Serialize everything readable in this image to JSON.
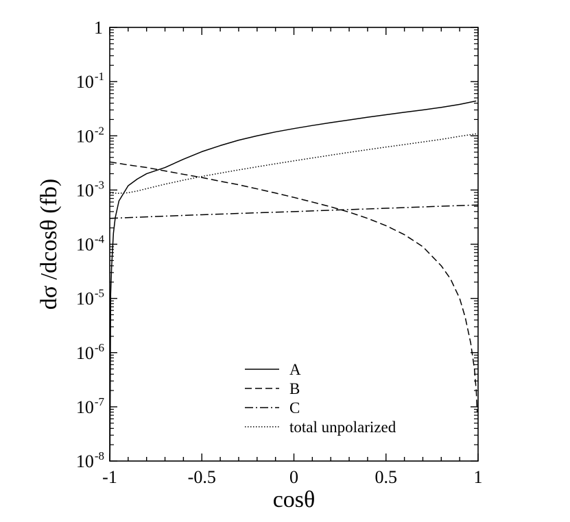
{
  "chart_data": {
    "type": "line",
    "xlabel": "cosθ",
    "ylabel": "dσ /dcosθ (fb)",
    "xlim": [
      -1,
      1
    ],
    "ylim": [
      1e-08,
      1
    ],
    "yscale": "log",
    "grid": false,
    "legend_position": "bottom-center",
    "x_ticks": [
      {
        "value": -1,
        "label": "-1"
      },
      {
        "value": -0.5,
        "label": "-0.5"
      },
      {
        "value": 0,
        "label": "0"
      },
      {
        "value": 0.5,
        "label": "0.5"
      },
      {
        "value": 1,
        "label": "1"
      }
    ],
    "y_ticks": [
      {
        "value": 1,
        "base": "1",
        "exp": ""
      },
      {
        "value": 0.1,
        "base": "10",
        "exp": "-1"
      },
      {
        "value": 0.01,
        "base": "10",
        "exp": "-2"
      },
      {
        "value": 0.001,
        "base": "10",
        "exp": "-3"
      },
      {
        "value": 0.0001,
        "base": "10",
        "exp": "-4"
      },
      {
        "value": 1e-05,
        "base": "10",
        "exp": "-5"
      },
      {
        "value": 1e-06,
        "base": "10",
        "exp": "-6"
      },
      {
        "value": 1e-07,
        "base": "10",
        "exp": "-7"
      },
      {
        "value": 1e-08,
        "base": "10",
        "exp": "-8"
      }
    ],
    "series": [
      {
        "name": "A",
        "style": "solid",
        "x": [
          -0.999,
          -0.995,
          -0.99,
          -0.98,
          -0.97,
          -0.95,
          -0.9,
          -0.85,
          -0.8,
          -0.7,
          -0.6,
          -0.5,
          -0.4,
          -0.3,
          -0.2,
          -0.1,
          0,
          0.1,
          0.2,
          0.3,
          0.4,
          0.5,
          0.6,
          0.7,
          0.8,
          0.9,
          0.99
        ],
        "y": [
          1e-08,
          1.2e-05,
          3.8e-05,
          0.00016,
          0.00031,
          0.00063,
          0.0012,
          0.0016,
          0.002,
          0.0026,
          0.0037,
          0.0051,
          0.0066,
          0.0083,
          0.01,
          0.0118,
          0.0136,
          0.0155,
          0.0175,
          0.0196,
          0.022,
          0.0245,
          0.0272,
          0.03,
          0.0335,
          0.038,
          0.044
        ]
      },
      {
        "name": "B",
        "style": "dashed",
        "x": [
          -1,
          -0.9,
          -0.8,
          -0.7,
          -0.6,
          -0.5,
          -0.4,
          -0.3,
          -0.2,
          -0.1,
          0,
          0.1,
          0.2,
          0.3,
          0.4,
          0.5,
          0.6,
          0.7,
          0.8,
          0.85,
          0.9,
          0.93,
          0.96,
          0.98,
          0.99,
          0.995
        ],
        "y": [
          0.0033,
          0.0029,
          0.0026,
          0.00225,
          0.00195,
          0.0017,
          0.00145,
          0.00125,
          0.00105,
          0.00088,
          0.00073,
          0.0006,
          0.00049,
          0.00039,
          0.0003,
          0.00022,
          0.00015,
          9e-05,
          4e-05,
          2.3e-05,
          1e-05,
          4.5e-06,
          1.5e-06,
          5e-07,
          2e-07,
          8e-08
        ]
      },
      {
        "name": "C",
        "style": "dashdot",
        "x": [
          -1,
          -0.75,
          -0.5,
          -0.25,
          0,
          0.25,
          0.5,
          0.75,
          1
        ],
        "y": [
          0.0003,
          0.000325,
          0.00035,
          0.000375,
          0.0004,
          0.00043,
          0.00046,
          0.000495,
          0.00053
        ]
      },
      {
        "name": "total unpolarized",
        "style": "dotted",
        "x": [
          -1,
          -0.95,
          -0.9,
          -0.85,
          -0.8,
          -0.7,
          -0.6,
          -0.5,
          -0.4,
          -0.3,
          -0.2,
          -0.1,
          0,
          0.1,
          0.2,
          0.3,
          0.4,
          0.5,
          0.6,
          0.7,
          0.8,
          0.9,
          1
        ],
        "y": [
          0.00088,
          0.00087,
          0.00089,
          0.00096,
          0.00106,
          0.00128,
          0.00152,
          0.00178,
          0.00205,
          0.00235,
          0.00268,
          0.00305,
          0.00345,
          0.0039,
          0.0044,
          0.00495,
          0.00555,
          0.0062,
          0.0069,
          0.0077,
          0.0086,
          0.0098,
          0.011
        ]
      }
    ]
  }
}
